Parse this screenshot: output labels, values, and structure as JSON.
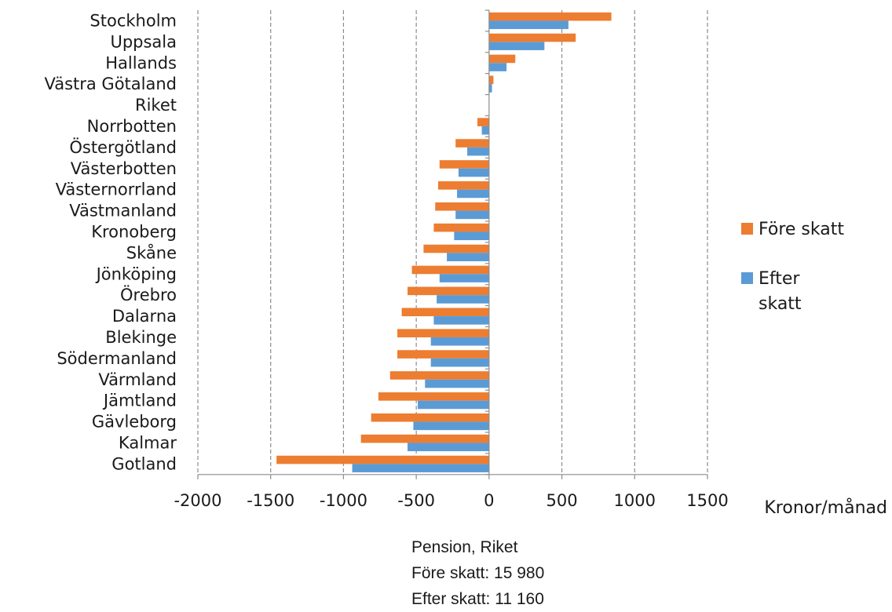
{
  "chart_data": {
    "type": "bar",
    "orientation": "horizontal",
    "categories": [
      "Stockholm",
      "Uppsala",
      "Hallands",
      "Västra Götaland",
      "Riket",
      "Norrbotten",
      "Östergötland",
      "Västerbotten",
      "Västernorrland",
      "Västmanland",
      "Kronoberg",
      "Skåne",
      "Jönköping",
      "Örebro",
      "Dalarna",
      "Blekinge",
      "Södermanland",
      "Värmland",
      "Jämtland",
      "Gävleborg",
      "Kalmar",
      "Gotland"
    ],
    "series": [
      {
        "name": "Före skatt",
        "color": "#ED7D31",
        "values": [
          840,
          595,
          180,
          30,
          0,
          -80,
          -230,
          -340,
          -350,
          -370,
          -380,
          -450,
          -530,
          -560,
          -600,
          -630,
          -630,
          -680,
          -760,
          -810,
          -880,
          -1460
        ]
      },
      {
        "name": "Efter skatt",
        "color": "#5B9BD5",
        "values": [
          545,
          380,
          120,
          20,
          0,
          -50,
          -150,
          -210,
          -220,
          -230,
          -240,
          -290,
          -340,
          -360,
          -380,
          -400,
          -400,
          -440,
          -490,
          -520,
          -560,
          -940
        ]
      }
    ],
    "xlim": [
      -2000,
      1500
    ],
    "xticks": [
      "-2000",
      "-1500",
      "-1000",
      "-500",
      "0",
      "500",
      "1000",
      "1500"
    ],
    "xlabel": "Kronor/månad",
    "ylabel": "",
    "title": "",
    "grid": "vertical dashed",
    "legend_position": "right"
  },
  "note": {
    "line1": "Pension, Riket",
    "line2": "Före skatt: 15 980",
    "line3": "Efter skatt: 11 160"
  }
}
